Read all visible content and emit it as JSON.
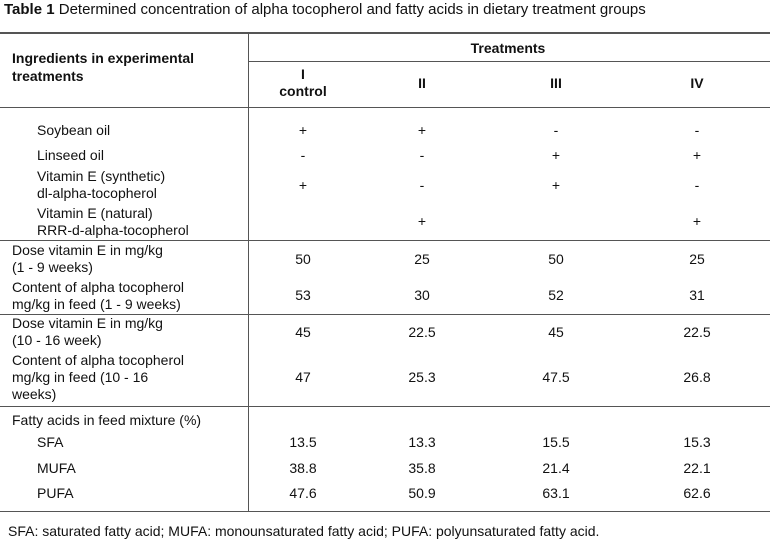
{
  "title": {
    "label": "Table 1",
    "text": "Determined concentration of alpha tocopherol and fatty acids in dietary treatment groups"
  },
  "table": {
    "header": {
      "ingredients": "Ingredients in experimental treatments",
      "treatments": "Treatments",
      "columns": [
        [
          "I",
          "control"
        ],
        [
          "II"
        ],
        [
          "III"
        ],
        [
          "IV"
        ]
      ]
    },
    "groups": [
      {
        "rows": [
          {
            "label": [
              "Soybean oil"
            ],
            "values": [
              "+",
              "+",
              "-",
              "-"
            ]
          },
          {
            "label": [
              "Linseed oil"
            ],
            "values": [
              "-",
              "-",
              "+",
              "+"
            ]
          },
          {
            "label": [
              "Vitamin E (synthetic)",
              "dl-alpha-tocopherol"
            ],
            "values": [
              "+",
              "-",
              "+",
              "-"
            ]
          },
          {
            "label": [
              "Vitamin E (natural)",
              "RRR-d-alpha-tocopherol"
            ],
            "values": [
              null,
              "+",
              null,
              "+"
            ]
          }
        ]
      },
      {
        "rows": [
          {
            "label": [
              "Dose vitamin E in mg/kg",
              "(1 - 9 weeks)"
            ],
            "values": [
              50,
              25,
              50,
              25
            ]
          },
          {
            "label": [
              "Content of alpha tocopherol",
              "mg/kg in feed (1 - 9 weeks)"
            ],
            "values": [
              53,
              30,
              52,
              31
            ]
          }
        ]
      },
      {
        "rows": [
          {
            "label": [
              "Dose vitamin E in mg/kg",
              "(10 - 16 week)"
            ],
            "values": [
              45,
              22.5,
              45,
              22.5
            ]
          },
          {
            "label": [
              "Content of alpha tocopherol",
              "mg/kg in feed (10 - 16",
              "weeks)"
            ],
            "values": [
              47,
              25.3,
              47.5,
              26.8
            ]
          }
        ]
      },
      {
        "heading": "Fatty acids in feed mixture (%)",
        "rows": [
          {
            "label": [
              "SFA"
            ],
            "values": [
              13.5,
              13.3,
              15.5,
              15.3
            ]
          },
          {
            "label": [
              "MUFA"
            ],
            "values": [
              38.8,
              35.8,
              21.4,
              22.1
            ]
          },
          {
            "label": [
              "PUFA"
            ],
            "values": [
              47.6,
              50.9,
              63.1,
              62.6
            ]
          }
        ]
      }
    ],
    "footnote": "SFA: saturated fatty acid; MUFA: monounsaturated fatty acid; PUFA: polyunsaturated fatty acid."
  }
}
